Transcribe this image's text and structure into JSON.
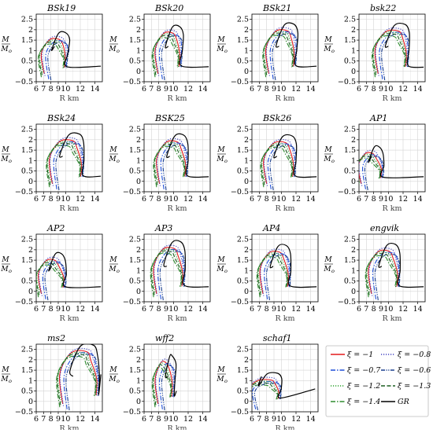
{
  "figure": {
    "ylabel_top": "M",
    "ylabel_bottom": "Mo",
    "ylabel_sub": "o",
    "xlabel": "R km"
  },
  "legend": {
    "entries": [
      {
        "label": "ξ = −1",
        "color": "#e41a1c",
        "dash": "solid"
      },
      {
        "label": "ξ = −0.8",
        "color": "#4040c0",
        "dash": "dot"
      },
      {
        "label": "ξ = −0.7",
        "color": "#1f4fd8",
        "dash": "dashdot"
      },
      {
        "label": "ξ = −0.6",
        "color": "#1a3f8f",
        "dash": "dashdotdot"
      },
      {
        "label": "ξ = −1.2",
        "color": "#2ca02c",
        "dash": "dot"
      },
      {
        "label": "ξ = −1.3",
        "color": "#1b5e20",
        "dash": "dash"
      },
      {
        "label": "ξ = −1.4",
        "color": "#2e8b2e",
        "dash": "dashdot"
      },
      {
        "label": "GR",
        "color": "#000000",
        "dash": "solid"
      }
    ]
  },
  "chart_data": [
    {
      "type": "line",
      "title": "BSk19",
      "xlabel": "R km",
      "ylabel": "M/Mo",
      "xlim": [
        6,
        15
      ],
      "ylim": [
        -0.5,
        2.75
      ],
      "xticks": [
        6,
        7,
        8,
        9,
        10,
        12,
        14
      ],
      "yticks": [
        -0.5,
        0,
        0.5,
        1,
        1.5,
        2,
        2.5
      ],
      "grid": true,
      "curve": {
        "rmax_gr": 10.2,
        "mmax_gr": 1.86,
        "r_inner": 7.4,
        "stable_r_gr": 10.3,
        "tail_end_r": 14.8,
        "tail_end_m": 0.25
      }
    },
    {
      "type": "line",
      "title": "BSk20",
      "xlabel": "R km",
      "ylabel": "M/Mo",
      "xlim": [
        6,
        15
      ],
      "ylim": [
        -0.5,
        2.75
      ],
      "xticks": [
        6,
        7,
        8,
        9,
        10,
        12,
        14
      ],
      "yticks": [
        -0.5,
        0,
        0.5,
        1,
        1.5,
        2,
        2.5
      ],
      "grid": true,
      "curve": {
        "rmax_gr": 11.0,
        "mmax_gr": 2.16,
        "r_inner": 8.2,
        "stable_r_gr": 11.2,
        "tail_end_r": 14.8,
        "tail_end_m": 0.22
      }
    },
    {
      "type": "line",
      "title": "BSk21",
      "xlabel": "R km",
      "ylabel": "M/Mo",
      "xlim": [
        6,
        15
      ],
      "ylim": [
        -0.5,
        2.75
      ],
      "xticks": [
        6,
        7,
        8,
        9,
        10,
        12,
        14
      ],
      "yticks": [
        -0.5,
        0,
        0.5,
        1,
        1.5,
        2,
        2.5
      ],
      "grid": true,
      "curve": {
        "rmax_gr": 11.9,
        "mmax_gr": 2.27,
        "r_inner": 8.6,
        "stable_r_gr": 12.1,
        "tail_end_r": 14.8,
        "tail_end_m": 0.25
      }
    },
    {
      "type": "line",
      "title": "bsk22",
      "xlabel": "R km",
      "ylabel": "M/Mo",
      "xlim": [
        6,
        15
      ],
      "ylim": [
        -0.5,
        2.75
      ],
      "xticks": [
        6,
        7,
        8,
        9,
        10,
        12,
        14
      ],
      "yticks": [
        -0.5,
        0,
        0.5,
        1,
        1.5,
        2,
        2.5
      ],
      "grid": true,
      "curve": {
        "rmax_gr": 12.5,
        "mmax_gr": 2.25,
        "r_inner": 8.9,
        "stable_r_gr": 12.8,
        "tail_end_r": 14.8,
        "tail_end_m": 0.2
      }
    },
    {
      "type": "line",
      "title": "BSk24",
      "xlabel": "R km",
      "ylabel": "M/Mo",
      "xlim": [
        6,
        15
      ],
      "ylim": [
        -0.5,
        2.75
      ],
      "xticks": [
        6,
        7,
        8,
        9,
        10,
        12,
        14
      ],
      "yticks": [
        -0.5,
        0,
        0.5,
        1,
        1.5,
        2,
        2.5
      ],
      "grid": true,
      "curve": {
        "rmax_gr": 12.1,
        "mmax_gr": 2.27,
        "r_inner": 8.5,
        "stable_r_gr": 12.5,
        "tail_end_r": 14.8,
        "tail_end_m": 0.25
      }
    },
    {
      "type": "line",
      "title": "BSK25",
      "xlabel": "R km",
      "ylabel": "M/Mo",
      "xlim": [
        6,
        15
      ],
      "ylim": [
        -0.5,
        2.75
      ],
      "xticks": [
        6,
        7,
        8,
        9,
        10,
        12,
        14
      ],
      "yticks": [
        -0.5,
        0,
        0.5,
        1,
        1.5,
        2,
        2.5
      ],
      "grid": true,
      "curve": {
        "rmax_gr": 11.6,
        "mmax_gr": 2.22,
        "r_inner": 8.4,
        "stable_r_gr": 12.0,
        "tail_end_r": 14.8,
        "tail_end_m": 0.22
      }
    },
    {
      "type": "line",
      "title": "BSk26",
      "xlabel": "R km",
      "ylabel": "M/Mo",
      "xlim": [
        6,
        15
      ],
      "ylim": [
        -0.5,
        2.75
      ],
      "xticks": [
        6,
        7,
        8,
        9,
        10,
        12,
        14
      ],
      "yticks": [
        -0.5,
        0,
        0.5,
        1,
        1.5,
        2,
        2.5
      ],
      "grid": true,
      "curve": {
        "rmax_gr": 11.7,
        "mmax_gr": 2.18,
        "r_inner": 8.3,
        "stable_r_gr": 12.0,
        "tail_end_r": 14.8,
        "tail_end_m": 0.22
      }
    },
    {
      "type": "line",
      "title": "AP1",
      "xlabel": "R km",
      "ylabel": "M/Mo",
      "xlim": [
        6,
        15
      ],
      "ylim": [
        -0.5,
        2.75
      ],
      "xticks": [
        6,
        7,
        8,
        9,
        10,
        12,
        14
      ],
      "yticks": [
        -0.5,
        0,
        0.5,
        1,
        1.5,
        2,
        2.5
      ],
      "grid": true,
      "curve": {
        "rmax_gr": 8.9,
        "mmax_gr": 1.67,
        "r_inner": 6.6,
        "stable_r_gr": 9.4,
        "tail_end_r": 14.8,
        "tail_end_m": 0.22
      }
    },
    {
      "type": "line",
      "title": "AP2",
      "xlabel": "R km",
      "ylabel": "M/Mo",
      "xlim": [
        6,
        15
      ],
      "ylim": [
        -0.5,
        2.75
      ],
      "xticks": [
        6,
        7,
        8,
        9,
        10,
        12,
        14
      ],
      "yticks": [
        -0.5,
        0,
        0.5,
        1,
        1.5,
        2,
        2.5
      ],
      "grid": true,
      "curve": {
        "rmax_gr": 9.6,
        "mmax_gr": 1.82,
        "r_inner": 7.0,
        "stable_r_gr": 10.1,
        "tail_end_r": 14.8,
        "tail_end_m": 0.22
      }
    },
    {
      "type": "line",
      "title": "AP3",
      "xlabel": "R km",
      "ylabel": "M/Mo",
      "xlim": [
        6,
        15
      ],
      "ylim": [
        -0.5,
        2.75
      ],
      "xticks": [
        6,
        7,
        8,
        9,
        10,
        12,
        14
      ],
      "yticks": [
        -0.5,
        0,
        0.5,
        1,
        1.5,
        2,
        2.5
      ],
      "grid": true,
      "curve": {
        "rmax_gr": 11.2,
        "mmax_gr": 2.38,
        "r_inner": 8.0,
        "stable_r_gr": 11.6,
        "tail_end_r": 14.8,
        "tail_end_m": 0.22
      }
    },
    {
      "type": "line",
      "title": "AP4",
      "xlabel": "R km",
      "ylabel": "M/Mo",
      "xlim": [
        6,
        15
      ],
      "ylim": [
        -0.5,
        2.75
      ],
      "xticks": [
        6,
        7,
        8,
        9,
        10,
        12,
        14
      ],
      "yticks": [
        -0.5,
        0,
        0.5,
        1,
        1.5,
        2,
        2.5
      ],
      "grid": true,
      "curve": {
        "rmax_gr": 10.9,
        "mmax_gr": 2.2,
        "r_inner": 7.8,
        "stable_r_gr": 11.3,
        "tail_end_r": 14.8,
        "tail_end_m": 0.22
      }
    },
    {
      "type": "line",
      "title": "engvik",
      "xlabel": "R km",
      "ylabel": "M/Mo",
      "xlim": [
        6,
        15
      ],
      "ylim": [
        -0.5,
        2.75
      ],
      "xticks": [
        6,
        7,
        8,
        9,
        10,
        12,
        14
      ],
      "yticks": [
        -0.5,
        0,
        0.5,
        1,
        1.5,
        2,
        2.5
      ],
      "grid": true,
      "curve": {
        "rmax_gr": 11.2,
        "mmax_gr": 2.25,
        "r_inner": 8.0,
        "stable_r_gr": 11.6,
        "tail_end_r": 14.8,
        "tail_end_m": 0.22
      }
    },
    {
      "type": "line",
      "title": "ms2",
      "xlabel": "R km",
      "ylabel": "M/Mo",
      "xlim": [
        6,
        15
      ],
      "ylim": [
        -0.5,
        2.75
      ],
      "xticks": [
        6,
        7,
        8,
        9,
        10,
        12,
        14
      ],
      "yticks": [
        -0.5,
        0,
        0.5,
        1,
        1.5,
        2,
        2.5
      ],
      "grid": true,
      "curve": {
        "rmax_gr": 14.0,
        "mmax_gr": 2.7,
        "r_inner": 9.9,
        "stable_r_gr": 14.6,
        "tail_end_r": 14.8,
        "tail_end_m": 1.3
      }
    },
    {
      "type": "line",
      "title": "wff2",
      "xlabel": "R km",
      "ylabel": "M/Mo",
      "xlim": [
        6,
        15
      ],
      "ylim": [
        -0.5,
        2.75
      ],
      "xticks": [
        6,
        7,
        8,
        9,
        10,
        12,
        14
      ],
      "yticks": [
        -0.5,
        0,
        0.5,
        1,
        1.5,
        2,
        2.5
      ],
      "grid": true,
      "curve": {
        "rmax_gr": 10.0,
        "mmax_gr": 2.2,
        "r_inner": 8.2,
        "stable_r_gr": 10.2,
        "tail_end_r": 10.4,
        "tail_end_m": 0.5
      }
    },
    {
      "type": "line",
      "title": "schaf1",
      "xlabel": "R km",
      "ylabel": "M/Mo",
      "xlim": [
        6,
        15
      ],
      "ylim": [
        -0.5,
        2.75
      ],
      "xticks": [
        6,
        7,
        8,
        9,
        10,
        12,
        14
      ],
      "yticks": [
        -0.5,
        0,
        0.5,
        1,
        1.5,
        2,
        2.5
      ],
      "grid": true,
      "curve": {
        "rmax_gr": 9.7,
        "mmax_gr": 1.35,
        "r_inner": 6.2,
        "stable_r_gr": 10.0,
        "tail_end_r": 14.6,
        "tail_end_m": 0.6
      }
    }
  ]
}
